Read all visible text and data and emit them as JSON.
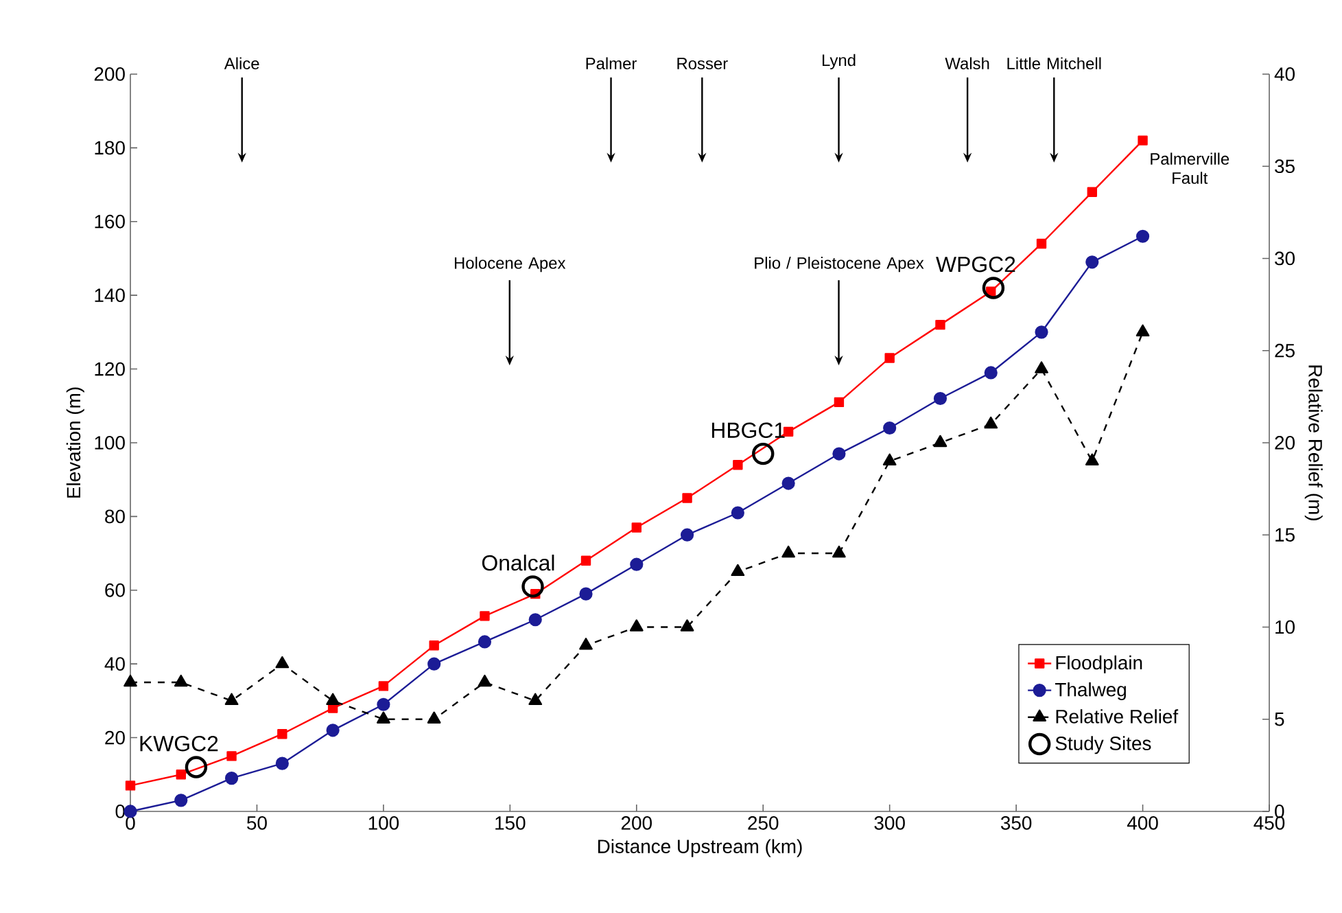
{
  "chart_data": {
    "type": "line",
    "xlabel": "Distance Upstream (km)",
    "ylabel": "Elevation (m)",
    "y2label": "Relative Relief (m)",
    "xlim": [
      0,
      450
    ],
    "xticks": [
      0,
      50,
      100,
      150,
      200,
      250,
      300,
      350,
      400,
      450
    ],
    "ylim": [
      0,
      200
    ],
    "yticks": [
      0,
      20,
      40,
      60,
      80,
      100,
      120,
      140,
      160,
      180,
      200
    ],
    "y2lim": [
      0,
      40
    ],
    "y2ticks": [
      0,
      5,
      10,
      15,
      20,
      25,
      30,
      35,
      40
    ],
    "legend": "bottom right",
    "series": [
      {
        "name": "Floodplain",
        "color": "#ff0000",
        "marker": "square",
        "line_style": "solid",
        "x": [
          0,
          20,
          40,
          60,
          80,
          100,
          120,
          140,
          160,
          180,
          200,
          220,
          240,
          260,
          280,
          300,
          320,
          340,
          360,
          380,
          400
        ],
        "values": [
          7,
          10,
          15,
          21,
          28,
          34,
          45,
          53,
          59,
          68,
          77,
          85,
          94,
          103,
          111,
          123,
          132,
          141,
          154,
          168,
          182
        ]
      },
      {
        "name": "Thalweg",
        "color": "#1c1c96",
        "marker": "circle",
        "line_style": "solid",
        "x": [
          0,
          20,
          40,
          60,
          80,
          100,
          120,
          140,
          160,
          180,
          200,
          220,
          240,
          260,
          280,
          300,
          320,
          340,
          360,
          380,
          400
        ],
        "values": [
          0,
          3,
          9,
          13,
          22,
          29,
          40,
          46,
          52,
          59,
          67,
          75,
          81,
          89,
          97,
          104,
          112,
          119,
          130,
          149,
          156
        ]
      },
      {
        "name": "Relative Relief",
        "color": "#000000",
        "marker": "triangle",
        "line_style": "dashed",
        "axis": "y2",
        "x": [
          0,
          20,
          40,
          60,
          80,
          100,
          120,
          140,
          160,
          180,
          200,
          220,
          240,
          260,
          280,
          300,
          320,
          340,
          360,
          380,
          400
        ],
        "values": [
          7,
          7,
          6,
          8,
          6,
          5,
          5,
          7,
          6,
          9,
          10,
          10,
          13,
          14,
          14,
          19,
          20,
          21,
          24,
          19,
          26
        ]
      },
      {
        "name": "Study Sites",
        "type": "scatter",
        "color": "#000000",
        "marker": "circle",
        "x": [
          26,
          159,
          250,
          341
        ],
        "values": [
          12,
          61,
          97,
          142
        ],
        "value_labels": [
          "KWGC2",
          "Onalcal",
          "HBGC1",
          "WPGC2"
        ]
      }
    ],
    "annotations": [
      "Alice",
      "Palmer",
      "Rosser",
      "Lynd",
      "Walsh",
      "Little Mitchell",
      "Holocene Apex",
      "Plio / Pleistocene Apex",
      "Palmerville Fault"
    ]
  }
}
